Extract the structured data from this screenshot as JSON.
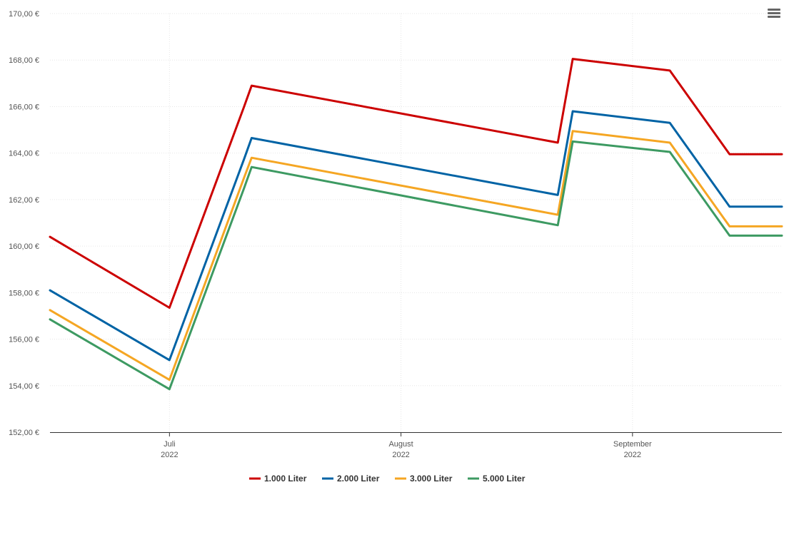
{
  "chart_data": {
    "type": "line",
    "title": "",
    "xlabel": "",
    "ylabel": "",
    "ylim": [
      152,
      170
    ],
    "y_ticks": [
      "152,00 €",
      "154,00 €",
      "156,00 €",
      "158,00 €",
      "160,00 €",
      "162,00 €",
      "164,00 €",
      "166,00 €",
      "168,00 €",
      "170,00 €"
    ],
    "x_range": [
      "2022-06-15",
      "2022-09-21"
    ],
    "x_ticks": [
      {
        "date": "2022-07-01",
        "label": "Juli",
        "year": "2022"
      },
      {
        "date": "2022-08-01",
        "label": "August",
        "year": "2022"
      },
      {
        "date": "2022-09-01",
        "label": "September",
        "year": "2022"
      }
    ],
    "x": [
      "2022-06-15",
      "2022-07-01",
      "2022-07-11",
      "2022-07-12",
      "2022-08-22",
      "2022-08-24",
      "2022-09-06",
      "2022-09-14",
      "2022-09-21"
    ],
    "series": [
      {
        "name": "1.000 Liter",
        "color": "#cc0000",
        "values": [
          160.4,
          157.35,
          166.0,
          166.9,
          164.45,
          168.05,
          167.55,
          163.95,
          163.95
        ]
      },
      {
        "name": "2.000 Liter",
        "color": "#0063a5",
        "values": [
          158.1,
          155.1,
          163.75,
          164.65,
          162.2,
          165.8,
          165.3,
          161.7,
          161.7
        ]
      },
      {
        "name": "3.000 Liter",
        "color": "#f5a623",
        "values": [
          157.25,
          154.25,
          162.95,
          163.8,
          161.35,
          164.95,
          164.45,
          160.85,
          160.85
        ]
      },
      {
        "name": "5.000 Liter",
        "color": "#3d9a62",
        "values": [
          156.85,
          153.85,
          162.5,
          163.4,
          160.9,
          164.5,
          164.05,
          160.45,
          160.45
        ]
      }
    ],
    "grid": true,
    "legend": "bottom-center"
  },
  "menu": {
    "icon": "hamburger-menu-icon"
  }
}
